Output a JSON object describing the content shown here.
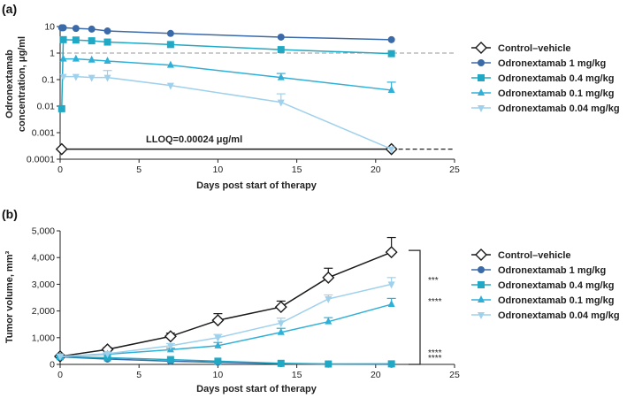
{
  "colors": {
    "control": "#1a1a1a",
    "d1": "#3b6aa8",
    "d04": "#20a8c4",
    "d01": "#2fb0d8",
    "d004": "#9fd0ec"
  },
  "chart_data": [
    {
      "type": "line",
      "panel_label": "(a)",
      "title": "",
      "xlabel": "Days post start of therapy",
      "ylabel_line1": "Odronextamab",
      "ylabel_line2": "concentration, μg/ml",
      "yscale": "log",
      "xlim": [
        0,
        25
      ],
      "ylim": [
        0.0001,
        10
      ],
      "x_ticks": [
        0,
        5,
        10,
        15,
        20,
        25
      ],
      "x_tick_labels": [
        "0",
        "5",
        "10",
        "15",
        "20",
        "25"
      ],
      "y_ticks": [
        10,
        1,
        0.1,
        0.01,
        0.001,
        0.0001
      ],
      "y_tick_labels": [
        "10",
        "1",
        "0.1",
        "0.01",
        "0.001",
        "0.0001"
      ],
      "reference_line": 1,
      "annotation": "LLOQ=0.00024 μg/ml",
      "lloq": 0.00024,
      "series": [
        {
          "name": "Control–vehicle",
          "marker": "diamond",
          "x": [
            0.1,
            21
          ],
          "values": [
            0.00024,
            0.00024
          ],
          "errors": [
            0,
            0
          ]
        },
        {
          "name": "Odronextamab 1 mg/kg",
          "marker": "circle",
          "x": [
            0.1,
            0.2,
            1,
            2,
            3,
            7,
            14,
            21
          ],
          "values": [
            9,
            9,
            8.5,
            8,
            6.8,
            5.5,
            4,
            3.2
          ],
          "errors": [
            0,
            0,
            0,
            0,
            0,
            0,
            0,
            0
          ]
        },
        {
          "name": "Odronextamab 0.4 mg/kg",
          "marker": "square",
          "x": [
            0.1,
            0.2,
            1,
            2,
            3,
            7,
            14,
            21
          ],
          "values": [
            0.008,
            3.2,
            3.1,
            2.9,
            2.6,
            2.1,
            1.35,
            0.95
          ],
          "errors": [
            0,
            0,
            0,
            0,
            0,
            0,
            0,
            0
          ]
        },
        {
          "name": "Odronextamab 0.1 mg/kg",
          "marker": "triangle",
          "x": [
            0.2,
            1,
            2,
            3,
            7,
            14,
            21
          ],
          "values": [
            0.6,
            0.6,
            0.55,
            0.5,
            0.35,
            0.12,
            0.04
          ],
          "errors": [
            0,
            0,
            0,
            0,
            0,
            0.05,
            0.04
          ]
        },
        {
          "name": "Odronextamab 0.04 mg/kg",
          "marker": "tri-down",
          "x": [
            0.2,
            1,
            2,
            3,
            7,
            14,
            21
          ],
          "values": [
            0.13,
            0.13,
            0.12,
            0.12,
            0.06,
            0.014,
            0.00024
          ],
          "errors": [
            0,
            0,
            0,
            0.1,
            0,
            0.015,
            0
          ]
        }
      ],
      "legend": [
        "Control–vehicle",
        "Odronextamab 1 mg/kg",
        "Odronextamab 0.4 mg/kg",
        "Odronextamab 0.1 mg/kg",
        "Odronextamab 0.04 mg/kg"
      ]
    },
    {
      "type": "line",
      "panel_label": "(b)",
      "title": "",
      "xlabel": "Days post start of therapy",
      "ylabel": "Tumor volume, mm³",
      "xlim": [
        0,
        25
      ],
      "ylim": [
        0,
        5000
      ],
      "x_ticks": [
        0,
        5,
        10,
        15,
        20,
        25
      ],
      "x_tick_labels": [
        "0",
        "5",
        "10",
        "15",
        "20",
        "25"
      ],
      "y_ticks": [
        0,
        1000,
        2000,
        3000,
        4000,
        5000
      ],
      "y_tick_labels": [
        "0",
        "1,000",
        "2,000",
        "3,000",
        "4,000",
        "5,000"
      ],
      "series": [
        {
          "name": "Control–vehicle",
          "marker": "diamond",
          "x": [
            0,
            3,
            7,
            10,
            14,
            17,
            21
          ],
          "values": [
            300,
            560,
            1050,
            1650,
            2150,
            3250,
            4200
          ],
          "errors": [
            0,
            70,
            120,
            250,
            220,
            350,
            550
          ]
        },
        {
          "name": "Odronextamab 1 mg/kg",
          "marker": "circle",
          "x": [
            0,
            3,
            7,
            10,
            14,
            17,
            21
          ],
          "values": [
            280,
            200,
            120,
            80,
            30,
            10,
            5
          ],
          "errors": [
            0,
            0,
            0,
            0,
            0,
            0,
            0
          ]
        },
        {
          "name": "Odronextamab 0.4 mg/kg",
          "marker": "square",
          "x": [
            0,
            3,
            7,
            10,
            14,
            17,
            21
          ],
          "values": [
            290,
            250,
            180,
            120,
            40,
            15,
            20
          ],
          "errors": [
            0,
            0,
            0,
            0,
            0,
            0,
            0
          ]
        },
        {
          "name": "Odronextamab 0.1 mg/kg",
          "marker": "triangle",
          "x": [
            0,
            3,
            7,
            10,
            14,
            17,
            21
          ],
          "values": [
            300,
            380,
            550,
            700,
            1200,
            1600,
            2250
          ],
          "errors": [
            0,
            40,
            60,
            120,
            150,
            150,
            220
          ]
        },
        {
          "name": "Odronextamab 0.04 mg/kg",
          "marker": "tri-down",
          "x": [
            0,
            3,
            7,
            10,
            14,
            17,
            21
          ],
          "values": [
            300,
            400,
            700,
            1000,
            1550,
            2450,
            3000
          ],
          "errors": [
            0,
            40,
            80,
            120,
            180,
            150,
            250
          ]
        }
      ],
      "significance": [
        "***",
        "****",
        "****",
        "****"
      ],
      "legend": [
        "Control–vehicle",
        "Odronextamab 1 mg/kg",
        "Odronextamab 0.4 mg/kg",
        "Odronextamab 0.1 mg/kg",
        "Odronextamab 0.04 mg/kg"
      ]
    }
  ]
}
